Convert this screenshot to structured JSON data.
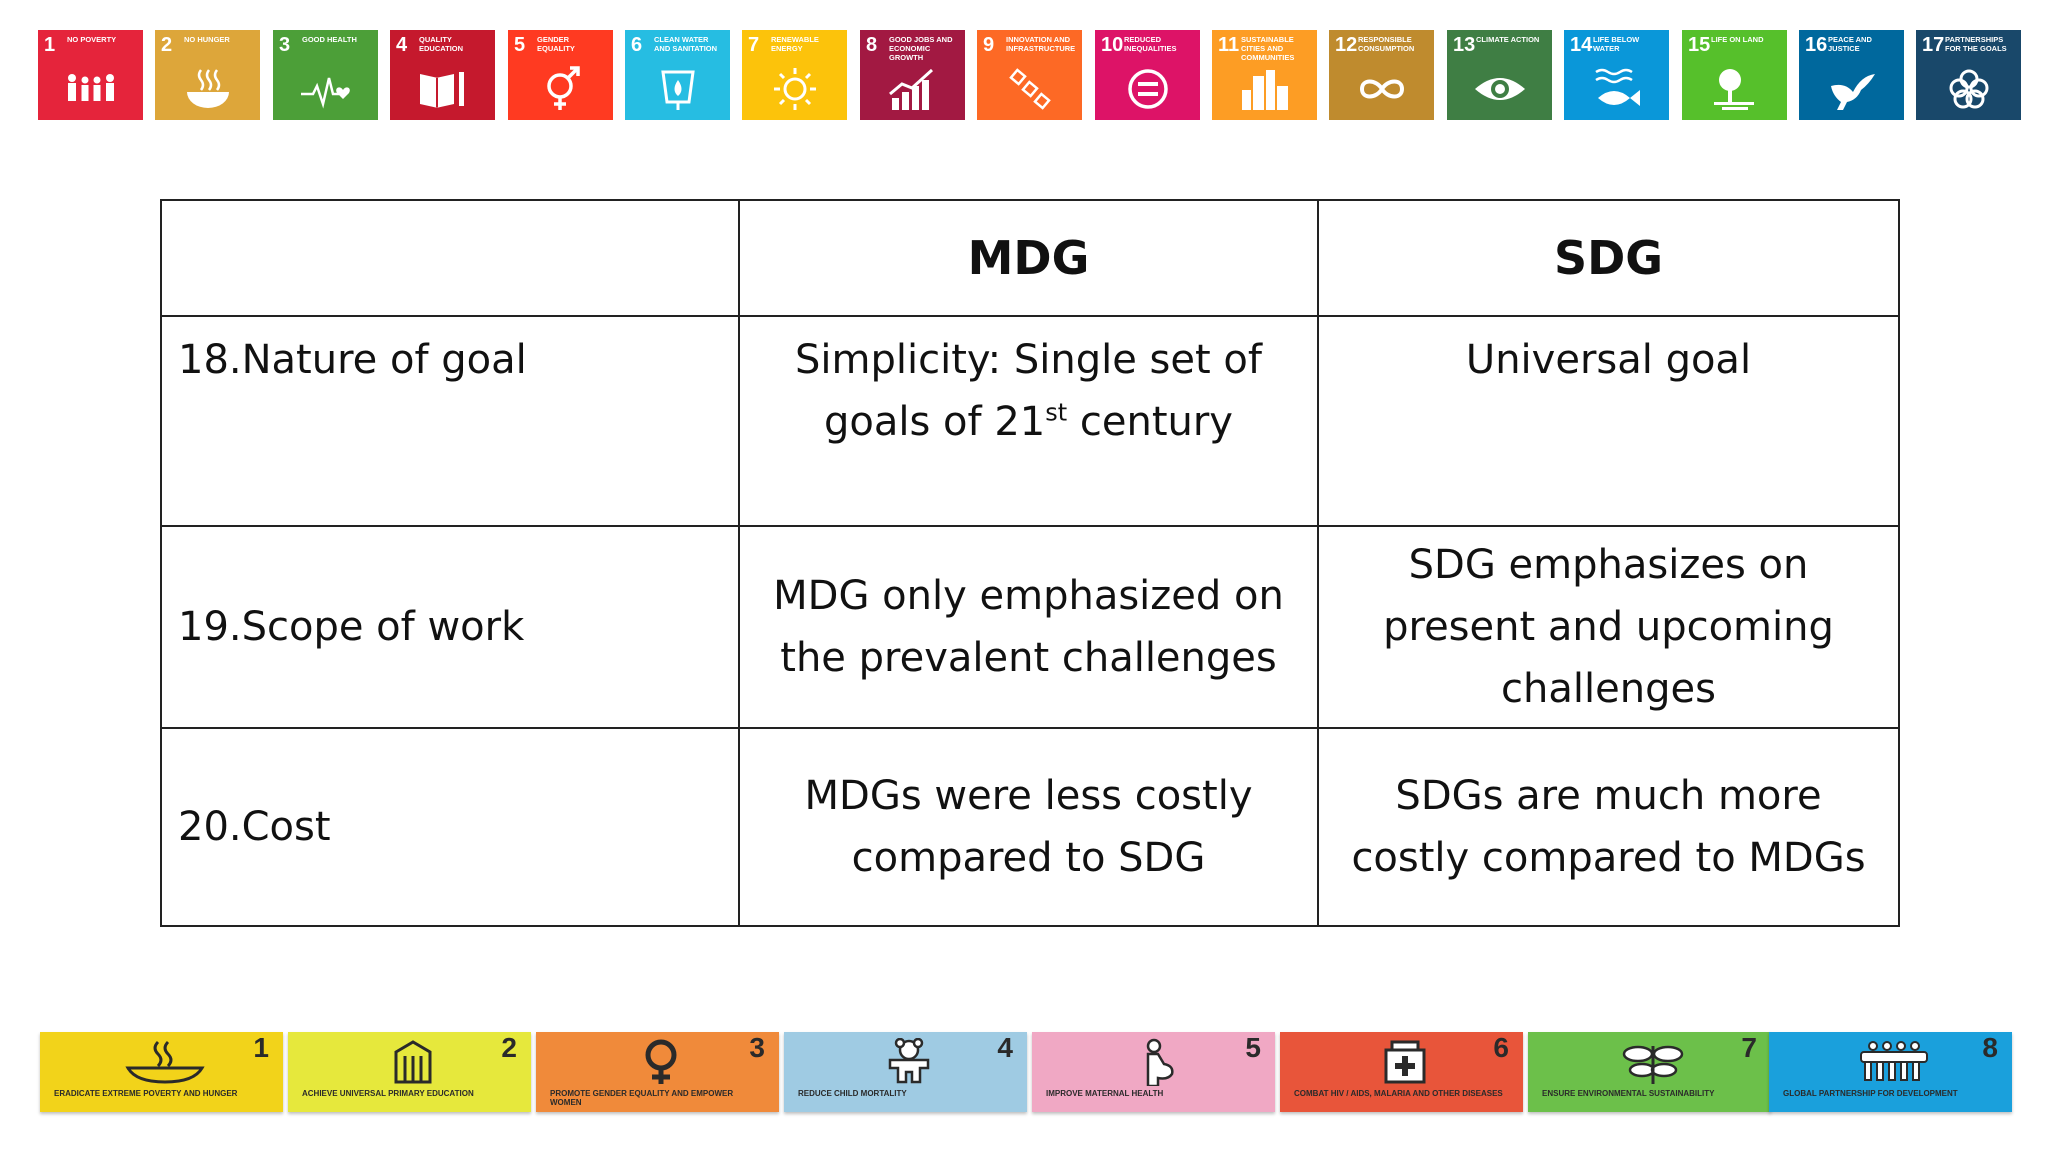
{
  "sdg_tiles": [
    {
      "num": "1",
      "name": "No Poverty",
      "color": "#e5243b",
      "icon": "family-icon"
    },
    {
      "num": "2",
      "name": "No Hunger",
      "color": "#dda63a",
      "icon": "bowl-icon"
    },
    {
      "num": "3",
      "name": "Good Health",
      "color": "#4c9f38",
      "icon": "heartbeat-icon"
    },
    {
      "num": "4",
      "name": "Quality Education",
      "color": "#c5192d",
      "icon": "book-icon"
    },
    {
      "num": "5",
      "name": "Gender Equality",
      "color": "#ff3a21",
      "icon": "gender-icon"
    },
    {
      "num": "6",
      "name": "Clean Water and Sanitation",
      "color": "#26bde2",
      "icon": "water-drop-icon"
    },
    {
      "num": "7",
      "name": "Renewable Energy",
      "color": "#fcc30b",
      "icon": "sun-power-icon"
    },
    {
      "num": "8",
      "name": "Good Jobs and Economic Growth",
      "color": "#a21942",
      "icon": "growth-chart-icon"
    },
    {
      "num": "9",
      "name": "Innovation and Infrastructure",
      "color": "#fd6925",
      "icon": "infrastructure-icon"
    },
    {
      "num": "10",
      "name": "Reduced Inequalities",
      "color": "#dd1367",
      "icon": "equal-icon"
    },
    {
      "num": "11",
      "name": "Sustainable Cities and Communities",
      "color": "#fd9d24",
      "icon": "city-icon"
    },
    {
      "num": "12",
      "name": "Responsible Consumption",
      "color": "#bf8b2e",
      "icon": "infinity-icon"
    },
    {
      "num": "13",
      "name": "Climate Action",
      "color": "#3f7e44",
      "icon": "eye-globe-icon"
    },
    {
      "num": "14",
      "name": "Life Below Water",
      "color": "#0a97d9",
      "icon": "fish-icon"
    },
    {
      "num": "15",
      "name": "Life on Land",
      "color": "#56c02b",
      "icon": "tree-icon"
    },
    {
      "num": "16",
      "name": "Peace and Justice",
      "color": "#00689d",
      "icon": "dove-icon"
    },
    {
      "num": "17",
      "name": "Partnerships for the Goals",
      "color": "#19486a",
      "icon": "flower-icon"
    }
  ],
  "table": {
    "headers": [
      "",
      "MDG",
      "SDG"
    ],
    "rows": [
      {
        "label": "18.Nature of goal",
        "mdg_line1": "Simplicity: Single set of",
        "mdg_line2_pre": "goals of 21",
        "mdg_line2_sup": "st",
        "mdg_line2_post": " century",
        "sdg": "Universal goal"
      },
      {
        "label": "19.Scope of work",
        "mdg": "MDG only emphasized on the prevalent challenges",
        "sdg": "SDG emphasizes on present and upcoming challenges"
      },
      {
        "label": "20.Cost",
        "mdg": "MDGs were less costly compared to SDG",
        "sdg": "SDGs are much more costly compared to MDGs"
      }
    ]
  },
  "mdg_tiles": [
    {
      "num": "1",
      "caption": "Eradicate extreme poverty and hunger",
      "color": "#f2d31a",
      "icon": "bowl-steam-icon"
    },
    {
      "num": "2",
      "caption": "Achieve universal primary education",
      "color": "#e6e83c",
      "icon": "school-icon"
    },
    {
      "num": "3",
      "caption": "Promote gender equality and empower women",
      "color": "#f08a3a",
      "icon": "female-symbol-icon"
    },
    {
      "num": "4",
      "caption": "Reduce child mortality",
      "color": "#9fcbe3",
      "icon": "teddy-bear-icon"
    },
    {
      "num": "5",
      "caption": "Improve maternal health",
      "color": "#f0a8c4",
      "icon": "mother-icon"
    },
    {
      "num": "6",
      "caption": "Combat HIV / AIDS, malaria and other diseases",
      "color": "#e8553a",
      "icon": "medicine-jar-icon"
    },
    {
      "num": "7",
      "caption": "Ensure environmental sustainability",
      "color": "#6cc04a",
      "icon": "plant-icon"
    },
    {
      "num": "8",
      "caption": "Global partnership for development",
      "color": "#1aa0dc",
      "icon": "people-group-icon"
    }
  ]
}
